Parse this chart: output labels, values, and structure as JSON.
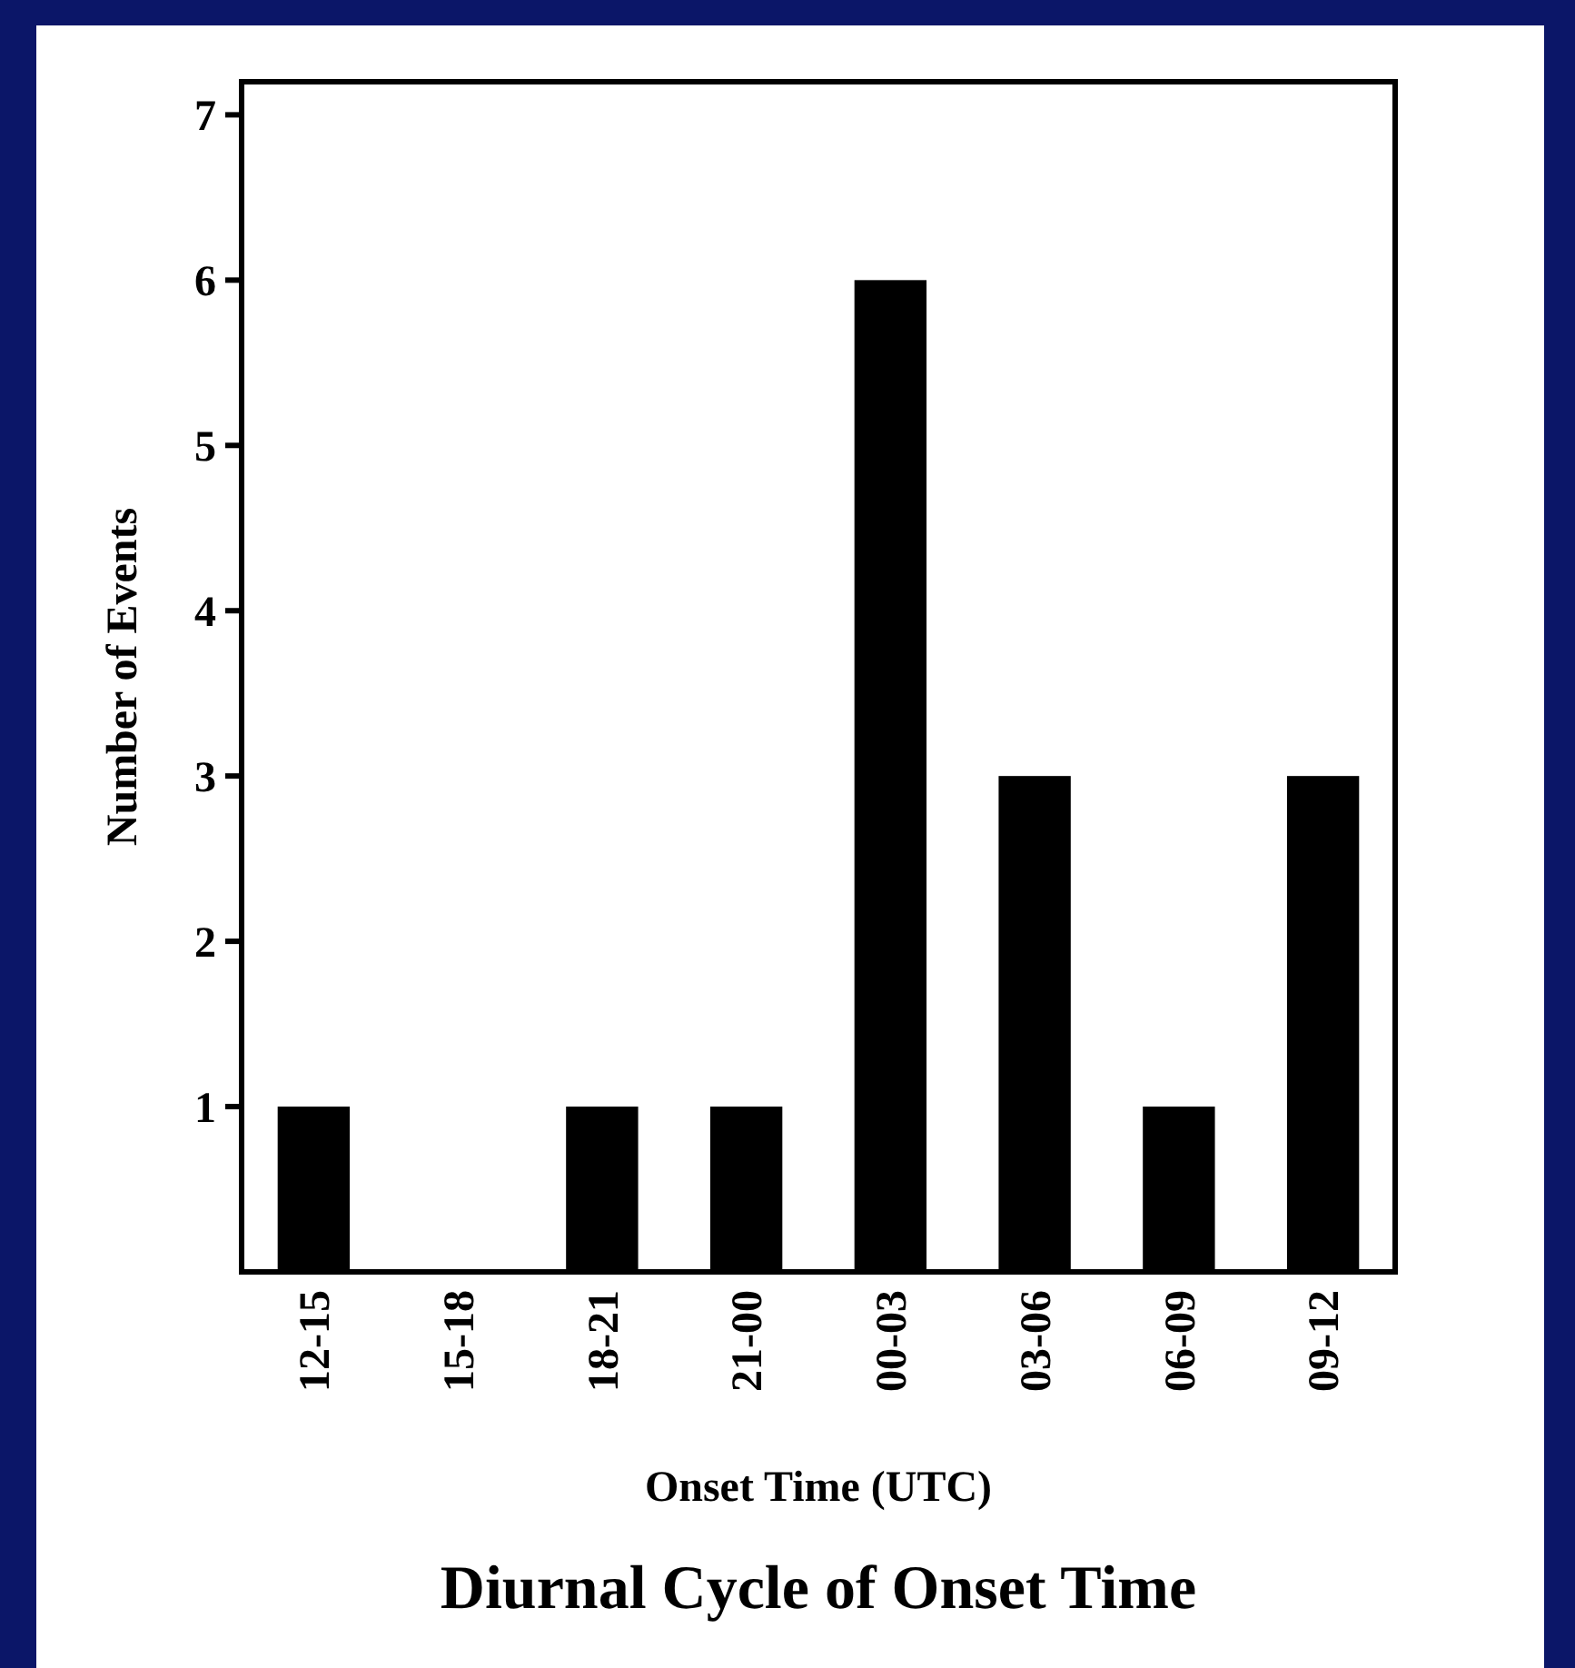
{
  "chart_data": {
    "type": "bar",
    "title": "Diurnal Cycle of Onset Time",
    "xlabel": "Onset Time (UTC)",
    "ylabel": "Number of Events",
    "categories": [
      "12-15",
      "15-18",
      "18-21",
      "21-00",
      "00-03",
      "03-06",
      "06-09",
      "09-12"
    ],
    "values": [
      1,
      0,
      1,
      1,
      6,
      3,
      1,
      3
    ],
    "color": "#000000",
    "ylim": [
      0,
      7.2
    ],
    "yticks": [
      1,
      2,
      3,
      4,
      5,
      6,
      7
    ],
    "grid": false
  }
}
